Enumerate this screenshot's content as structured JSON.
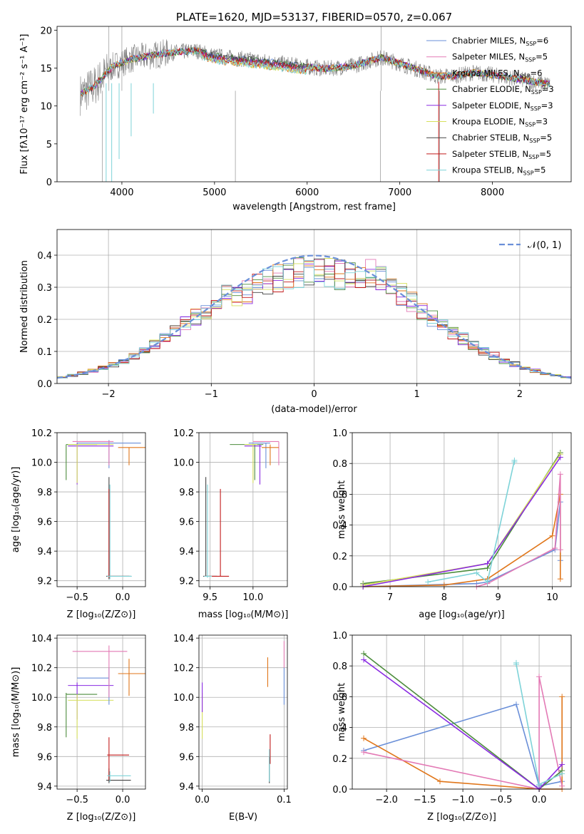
{
  "colors": [
    "#6a8fd8",
    "#e37ab5",
    "#e0761a",
    "#4c8c3c",
    "#8a2be2",
    "#d6e05c",
    "#444444",
    "#c21b1b",
    "#7ed3d8",
    "#808080"
  ],
  "top": {
    "title": "PLATE=1620, MJD=53137, FIBERID=0570, z=0.067",
    "xlabel": "wavelength [Angstrom, rest frame]",
    "ylabel": "Flux [fλ10⁻¹⁷ erg cm⁻² s⁻¹ A⁻¹]",
    "xticks": [
      "4000",
      "5000",
      "6000",
      "7000",
      "8000"
    ],
    "yticks": [
      "0",
      "5",
      "10",
      "15",
      "20"
    ],
    "legend": [
      {
        "name": "Chabrier MILES, N_SSP=6",
        "base": "Chabrier MILES, N",
        "sub": "SSP",
        "tail": "=6"
      },
      {
        "name": "Salpeter MILES, N_SSP=5",
        "base": "Salpeter MILES, N",
        "sub": "SSP",
        "tail": "=5"
      },
      {
        "name": "Kroupa MILES, N_SSP=6",
        "base": "Kroupa MILES, N",
        "sub": "SSP",
        "tail": "=6"
      },
      {
        "name": "Chabrier ELODIE, N_SSP=3",
        "base": "Chabrier ELODIE, N",
        "sub": "SSP",
        "tail": "=3"
      },
      {
        "name": "Salpeter ELODIE, N_SSP=3",
        "base": "Salpeter ELODIE, N",
        "sub": "SSP",
        "tail": "=3"
      },
      {
        "name": "Kroupa ELODIE, N_SSP=3",
        "base": "Kroupa ELODIE, N",
        "sub": "SSP",
        "tail": "=3"
      },
      {
        "name": "Chabrier STELIB, N_SSP=5",
        "base": "Chabrier STELIB, N",
        "sub": "SSP",
        "tail": "=5"
      },
      {
        "name": "Salpeter STELIB, N_SSP=5",
        "base": "Salpeter STELIB, N",
        "sub": "SSP",
        "tail": "=5"
      },
      {
        "name": "Kroupa STELIB, N_SSP=5",
        "base": "Kroupa STELIB, N",
        "sub": "SSP",
        "tail": "=5"
      }
    ]
  },
  "hist": {
    "xlabel": "(data-model)/error",
    "ylabel": "Normed distribution",
    "xticks": [
      "−2",
      "−1",
      "0",
      "1",
      "2"
    ],
    "yticks": [
      "0.0",
      "0.1",
      "0.2",
      "0.3",
      "0.4"
    ],
    "legend": "𝒩(0, 1)"
  },
  "p_age_z": {
    "xlabel": "Z [log₁₀(Z/Z⊙)]",
    "ylabel": "age  [log₁₀(age/yr)]",
    "xticks": [
      "−0.5",
      "0.0"
    ],
    "yticks": [
      "9.2",
      "9.4",
      "9.6",
      "9.8",
      "10.0",
      "10.2"
    ]
  },
  "p_age_mass": {
    "xlabel": "mass [log₁₀(M/M⊙)]",
    "xticks": [
      "9.5",
      "10.0"
    ],
    "yticks": [
      "9.2",
      "9.4",
      "9.6",
      "9.8",
      "10.0",
      "10.2"
    ]
  },
  "p_mw_age": {
    "xlabel": "age  [log₁₀(age/yr)]",
    "ylabel": "mass weight",
    "xticks": [
      "7",
      "8",
      "9",
      "10"
    ],
    "yticks": [
      "0.0",
      "0.2",
      "0.4",
      "0.6",
      "0.8",
      "1.0"
    ]
  },
  "p_mass_z": {
    "xlabel": "Z [log₁₀(Z/Z⊙)]",
    "ylabel": "mass [log₁₀(M/M⊙)]",
    "xticks": [
      "−0.5",
      "0.0"
    ],
    "yticks": [
      "9.4",
      "9.6",
      "9.8",
      "10.0",
      "10.2",
      "10.4"
    ]
  },
  "p_mass_ebv": {
    "xlabel": "E(B-V)",
    "xticks": [
      "0.0",
      "0.1"
    ],
    "yticks": [
      "9.4",
      "9.6",
      "9.8",
      "10.0",
      "10.2",
      "10.4"
    ]
  },
  "p_mw_z": {
    "xlabel": "Z [log₁₀(Z/Z⊙)]",
    "ylabel": "mass weight",
    "xticks": [
      "−2.0",
      "−1.5",
      "−1.0",
      "−0.5",
      "0.0"
    ],
    "yticks": [
      "0.0",
      "0.2",
      "0.4",
      "0.6",
      "0.8",
      "1.0"
    ]
  },
  "chart_data": [
    {
      "type": "line",
      "title": "PLATE=1620, MJD=53137, FIBERID=0570, z=0.067",
      "xlabel": "wavelength [Angstrom, rest frame]",
      "xlim": [
        3300,
        8850
      ],
      "ylim": [
        0,
        20.5
      ],
      "series": [
        {
          "name": "Chabrier MILES, N_SSP=6",
          "x": [
            3550,
            3700,
            3900,
            4100,
            4300,
            4500,
            4800,
            5000,
            5300,
            5600,
            5900,
            6200,
            6500,
            6800,
            7000,
            7200,
            7400
          ],
          "y": [
            11,
            12.5,
            15,
            16,
            16.3,
            16.8,
            17,
            16.6,
            16.3,
            15.8,
            15.4,
            15,
            15.2,
            16.2,
            15.5,
            14.7,
            13.5
          ]
        },
        {
          "name": "Kroupa STELIB, N_SSP=5",
          "x": [
            3550,
            3700,
            3900,
            4100,
            4300,
            4500,
            4800,
            5000,
            5300,
            5600,
            5900,
            6200,
            6500,
            6800,
            7000,
            7200,
            7400,
            7600,
            7800,
            8000,
            8200,
            8400,
            8600
          ],
          "y": [
            11.5,
            12.6,
            15.2,
            16.2,
            16.6,
            17,
            17.3,
            16.6,
            16.2,
            15.8,
            15.3,
            14.9,
            15.3,
            16.4,
            15.6,
            14.8,
            13.9,
            14,
            14.4,
            14.1,
            13.7,
            13.3,
            12.9
          ]
        }
      ]
    },
    {
      "type": "area",
      "xlabel": "(data-model)/error",
      "ylabel": "Normed distribution",
      "xlim": [
        -2.5,
        2.5
      ],
      "ylim": [
        0,
        0.48
      ],
      "bin_width": 0.1,
      "series": [
        {
          "name": "𝒩(0, 1)",
          "mean": 0,
          "sigma": 1
        }
      ]
    },
    {
      "type": "scatter",
      "xlabel": "age  [log₁₀(age/yr)]",
      "ylabel": "mass weight",
      "xlim": [
        6.3,
        10.35
      ],
      "ylim": [
        0,
        1
      ],
      "series": [
        {
          "name": "Chabrier MILES, N_SSP=6",
          "x": [
            6.5,
            8.6,
            8.8,
            10.05,
            10.15,
            10.15
          ],
          "y": [
            0.0,
            0.02,
            0.03,
            0.24,
            0.55,
            0.17
          ]
        },
        {
          "name": "Kroupa MILES, N_SSP=6",
          "x": [
            6.5,
            8.0,
            8.8,
            10.0,
            10.15,
            10.15
          ],
          "y": [
            0.0,
            0.01,
            0.05,
            0.33,
            0.6,
            0.05
          ]
        },
        {
          "name": "Salpeter MILES, N_SSP=5",
          "x": [
            8.6,
            8.8,
            10.05,
            10.15,
            10.15
          ],
          "y": [
            0.0,
            0.02,
            0.25,
            0.73,
            0.24
          ]
        },
        {
          "name": "Chabrier ELODIE, N_SSP=3",
          "x": [
            6.5,
            8.8,
            10.15
          ],
          "y": [
            0.02,
            0.12,
            0.87
          ]
        },
        {
          "name": "Kroupa ELODIE, N_SSP=3",
          "x": [
            6.5,
            8.8,
            10.15
          ],
          "y": [
            0.01,
            0.15,
            0.86
          ]
        },
        {
          "name": "Salpeter ELODIE, N_SSP=3",
          "x": [
            6.5,
            8.8,
            10.15
          ],
          "y": [
            0.0,
            0.15,
            0.84
          ]
        },
        {
          "name": "Kroupa STELIB, N_SSP=5",
          "x": [
            7.7,
            8.6,
            8.8,
            9.3,
            9.3
          ],
          "y": [
            0.03,
            0.09,
            0.03,
            0.82,
            0.81
          ]
        }
      ]
    },
    {
      "type": "scatter",
      "xlabel": "Z [log₁₀(Z/Z⊙)]",
      "ylabel": "mass weight",
      "xlim": [
        -2.45,
        0.42
      ],
      "ylim": [
        0,
        1
      ],
      "series": [
        {
          "name": "Chabrier MILES, N_SSP=6",
          "x": [
            -2.3,
            -0.3,
            0.0,
            0.3
          ],
          "y": [
            0.25,
            0.55,
            0.02,
            0.05
          ]
        },
        {
          "name": "Kroupa MILES, N_SSP=6",
          "x": [
            -2.3,
            -1.3,
            0.0,
            0.3,
            0.3
          ],
          "y": [
            0.33,
            0.05,
            0.0,
            0.0,
            0.6
          ]
        },
        {
          "name": "Salpeter MILES, N_SSP=5",
          "x": [
            -2.3,
            0.0,
            0.0,
            0.3
          ],
          "y": [
            0.24,
            0.0,
            0.73,
            0.02
          ]
        },
        {
          "name": "Chabrier ELODIE, N_SSP=3",
          "x": [
            -2.3,
            0.0,
            0.3
          ],
          "y": [
            0.88,
            0.0,
            0.12
          ]
        },
        {
          "name": "Salpeter ELODIE, N_SSP=3",
          "x": [
            -2.3,
            0.0,
            0.3
          ],
          "y": [
            0.84,
            0.0,
            0.16
          ]
        },
        {
          "name": "Kroupa STELIB, N_SSP=5",
          "x": [
            -0.3,
            -0.3,
            0.0,
            0.3
          ],
          "y": [
            0.82,
            0.81,
            0.03,
            0.1
          ]
        }
      ]
    }
  ]
}
